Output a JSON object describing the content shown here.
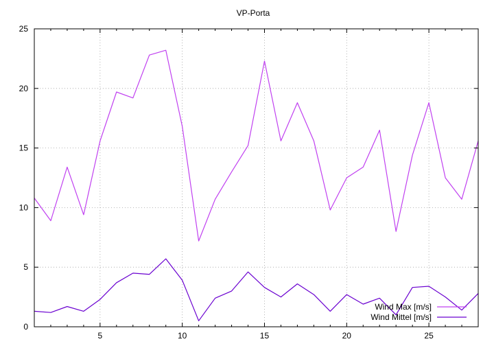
{
  "chart_data": {
    "type": "line",
    "title": "VP-Porta",
    "xlabel": "",
    "ylabel": "",
    "xlim": [
      1,
      28
    ],
    "ylim": [
      0,
      25
    ],
    "xticks": [
      5,
      10,
      15,
      20,
      25
    ],
    "yticks": [
      0,
      5,
      10,
      15,
      20,
      25
    ],
    "grid": true,
    "legend_position": "bottom-right",
    "x": [
      1,
      2,
      3,
      4,
      5,
      6,
      7,
      8,
      9,
      10,
      11,
      12,
      13,
      14,
      15,
      16,
      17,
      18,
      19,
      20,
      21,
      22,
      23,
      24,
      25,
      26,
      27,
      28
    ],
    "series": [
      {
        "name": "Wind Max [m/s]",
        "color": "#c040f0",
        "values": [
          10.8,
          8.9,
          13.4,
          9.4,
          15.6,
          19.7,
          19.2,
          22.8,
          23.2,
          16.8,
          7.2,
          10.7,
          13.0,
          15.2,
          22.3,
          15.6,
          18.8,
          15.6,
          9.8,
          12.5,
          13.4,
          16.5,
          8.0,
          14.4,
          18.8,
          12.5,
          10.7,
          15.6
        ]
      },
      {
        "name": "Wind Mittel [m/s]",
        "color": "#6a00d0",
        "values": [
          1.3,
          1.2,
          1.7,
          1.3,
          2.3,
          3.7,
          4.5,
          4.4,
          5.7,
          3.9,
          0.5,
          2.4,
          3.0,
          4.6,
          3.3,
          2.5,
          3.6,
          2.7,
          1.3,
          2.7,
          1.9,
          2.4,
          1.0,
          3.3,
          3.4,
          2.5,
          1.4,
          2.8
        ]
      }
    ]
  }
}
